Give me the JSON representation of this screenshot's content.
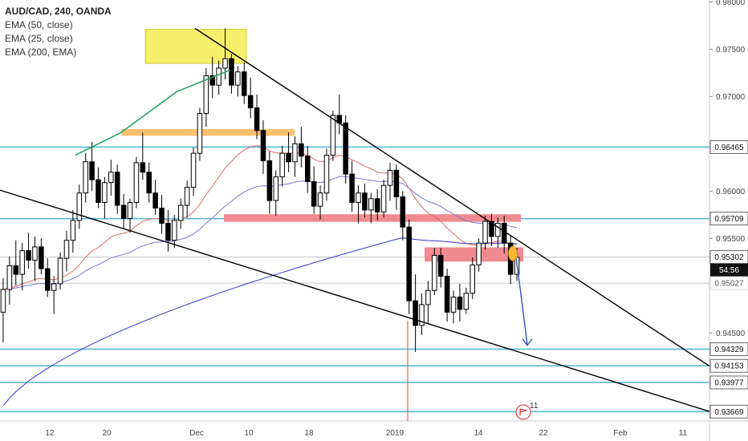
{
  "legend": {
    "title": "AUD/CAD, 240, OANDA",
    "indicators": [
      "EMA (50, close)",
      "EMA (25, close)",
      "EMA (200, EMA)"
    ]
  },
  "colors": {
    "candle": "#000000",
    "ema50": "#7a7ad0",
    "ema25": "#e06a6a",
    "ema200": "#3535c8",
    "hline": "#5bbcd0",
    "trendline": "#000000",
    "green_line": "#2aa36a",
    "yellow_box": "#f5f06a",
    "orange_box": "#ffc070",
    "red_box": "#f08a90",
    "arrow": "#3456c0",
    "marker": "#f7b731"
  },
  "chart_data": {
    "type": "candlestick",
    "symbol": "AUD/CAD",
    "timeframe": "240",
    "source": "OANDA",
    "ylim": [
      0.9357,
      0.9802
    ],
    "y_ticks": [
      0.98,
      0.975,
      0.97,
      0.96,
      0.955,
      0.945
    ],
    "y_tick_labels": [
      "0.98000",
      "0.97500",
      "0.97000",
      "0.96000",
      "0.95500",
      "0.94500"
    ],
    "x_tick_labels": [
      "12",
      "20",
      "Dec",
      "10",
      "18",
      "2019",
      "14",
      "22",
      "Feb",
      "11"
    ],
    "horizontal_levels": [
      0.96465,
      0.95709,
      0.94329,
      0.94153,
      0.93977,
      0.93669
    ],
    "level_labels": [
      "0.96465",
      "0.95709",
      "0.94329",
      "0.94153",
      "0.93977",
      "0.93669"
    ],
    "current_price": "0.95302",
    "countdown": "54:56",
    "secondary_price": "0.95027",
    "events_badge": "11",
    "candles": [
      [
        0.9472,
        0.9508,
        0.944,
        0.9496
      ],
      [
        0.9496,
        0.9531,
        0.948,
        0.9521
      ],
      [
        0.9521,
        0.9548,
        0.95,
        0.9512
      ],
      [
        0.9512,
        0.9545,
        0.9495,
        0.9537
      ],
      [
        0.9537,
        0.9556,
        0.9518,
        0.9527
      ],
      [
        0.9527,
        0.9552,
        0.9505,
        0.9541
      ],
      [
        0.9541,
        0.955,
        0.9512,
        0.9518
      ],
      [
        0.9518,
        0.9529,
        0.9488,
        0.9495
      ],
      [
        0.9495,
        0.951,
        0.947,
        0.9502
      ],
      [
        0.9502,
        0.9535,
        0.9496,
        0.9529
      ],
      [
        0.9529,
        0.9558,
        0.9515,
        0.9548
      ],
      [
        0.9548,
        0.958,
        0.9535,
        0.9569
      ],
      [
        0.9569,
        0.9607,
        0.956,
        0.9598
      ],
      [
        0.9598,
        0.964,
        0.9588,
        0.9631
      ],
      [
        0.9631,
        0.9652,
        0.96,
        0.9612
      ],
      [
        0.9612,
        0.9625,
        0.9582,
        0.9588
      ],
      [
        0.9588,
        0.9615,
        0.9571,
        0.9609
      ],
      [
        0.9609,
        0.9633,
        0.9595,
        0.962
      ],
      [
        0.962,
        0.9628,
        0.9576,
        0.9585
      ],
      [
        0.9585,
        0.9597,
        0.956,
        0.9571
      ],
      [
        0.9571,
        0.9592,
        0.9556,
        0.9588
      ],
      [
        0.9588,
        0.9636,
        0.9582,
        0.963
      ],
      [
        0.963,
        0.9662,
        0.9612,
        0.962
      ],
      [
        0.962,
        0.963,
        0.9588,
        0.9598
      ],
      [
        0.9598,
        0.9612,
        0.9575,
        0.9582
      ],
      [
        0.9582,
        0.9596,
        0.9555,
        0.9566
      ],
      [
        0.9566,
        0.958,
        0.9536,
        0.9548
      ],
      [
        0.9548,
        0.9575,
        0.954,
        0.9569
      ],
      [
        0.9569,
        0.9592,
        0.956,
        0.9585
      ],
      [
        0.9585,
        0.9611,
        0.9572,
        0.9604
      ],
      [
        0.9604,
        0.9646,
        0.9595,
        0.964
      ],
      [
        0.964,
        0.9688,
        0.9632,
        0.9682
      ],
      [
        0.9682,
        0.973,
        0.9668,
        0.9722
      ],
      [
        0.9722,
        0.9742,
        0.9698,
        0.9712
      ],
      [
        0.9712,
        0.9738,
        0.9702,
        0.973
      ],
      [
        0.973,
        0.9772,
        0.9718,
        0.974
      ],
      [
        0.974,
        0.9745,
        0.9703,
        0.9712
      ],
      [
        0.9712,
        0.9732,
        0.97,
        0.9726
      ],
      [
        0.9726,
        0.9736,
        0.9692,
        0.9701
      ],
      [
        0.9701,
        0.972,
        0.9677,
        0.9688
      ],
      [
        0.9688,
        0.9702,
        0.9655,
        0.9664
      ],
      [
        0.9664,
        0.9675,
        0.9618,
        0.9632
      ],
      [
        0.9632,
        0.9642,
        0.9576,
        0.959
      ],
      [
        0.959,
        0.9622,
        0.9574,
        0.9615
      ],
      [
        0.9615,
        0.9648,
        0.9605,
        0.964
      ],
      [
        0.964,
        0.9662,
        0.962,
        0.9631
      ],
      [
        0.9631,
        0.9658,
        0.9615,
        0.965
      ],
      [
        0.965,
        0.9668,
        0.9625,
        0.9637
      ],
      [
        0.9637,
        0.9648,
        0.9598,
        0.961
      ],
      [
        0.961,
        0.9626,
        0.9576,
        0.9584
      ],
      [
        0.9584,
        0.9606,
        0.957,
        0.9598
      ],
      [
        0.9598,
        0.9645,
        0.959,
        0.9638
      ],
      [
        0.9638,
        0.9685,
        0.9632,
        0.968
      ],
      [
        0.968,
        0.9702,
        0.966,
        0.9672
      ],
      [
        0.9672,
        0.968,
        0.9608,
        0.9618
      ],
      [
        0.9618,
        0.9632,
        0.9578,
        0.9588
      ],
      [
        0.9588,
        0.9606,
        0.9566,
        0.9598
      ],
      [
        0.9598,
        0.9608,
        0.9572,
        0.958
      ],
      [
        0.958,
        0.9598,
        0.9566,
        0.9592
      ],
      [
        0.9592,
        0.9602,
        0.9569,
        0.9578
      ],
      [
        0.9578,
        0.9612,
        0.9572,
        0.9606
      ],
      [
        0.9606,
        0.963,
        0.959,
        0.9622
      ],
      [
        0.9622,
        0.9628,
        0.958,
        0.9594
      ],
      [
        0.9594,
        0.96,
        0.9548,
        0.9562
      ],
      [
        0.9562,
        0.957,
        0.947,
        0.9484
      ],
      [
        0.9484,
        0.9512,
        0.943,
        0.9458
      ],
      [
        0.9458,
        0.9492,
        0.9448,
        0.948
      ],
      [
        0.948,
        0.9505,
        0.946,
        0.9495
      ],
      [
        0.9495,
        0.954,
        0.949,
        0.9532
      ],
      [
        0.9532,
        0.954,
        0.9498,
        0.951
      ],
      [
        0.951,
        0.9518,
        0.9462,
        0.9472
      ],
      [
        0.9472,
        0.9495,
        0.946,
        0.9488
      ],
      [
        0.9488,
        0.9502,
        0.9462,
        0.9475
      ],
      [
        0.9475,
        0.9498,
        0.947,
        0.9492
      ],
      [
        0.9492,
        0.953,
        0.9486,
        0.9522
      ],
      [
        0.9522,
        0.955,
        0.9515,
        0.9545
      ],
      [
        0.9545,
        0.9574,
        0.9538,
        0.9568
      ],
      [
        0.9568,
        0.9576,
        0.9542,
        0.9552
      ],
      [
        0.9552,
        0.9572,
        0.954,
        0.9566
      ],
      [
        0.9566,
        0.9574,
        0.9534,
        0.9545
      ],
      [
        0.9545,
        0.9553,
        0.9502,
        0.9512
      ],
      [
        0.9512,
        0.954,
        0.9505,
        0.953
      ]
    ]
  }
}
